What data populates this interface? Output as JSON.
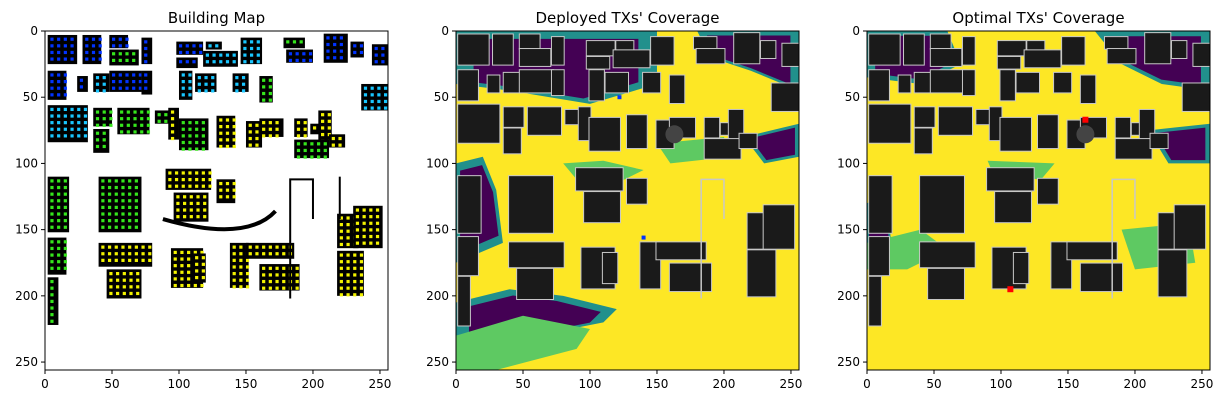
{
  "colors": {
    "building_black": "#000000",
    "building_fill": "#1a1a1a",
    "building_outline": "#c8c8c8",
    "viridis_dark": "#440154",
    "viridis_teal": "#21908c",
    "viridis_green": "#5ec962",
    "viridis_yellow": "#fde725",
    "tx_blue": "#0033ff",
    "tx_cyan": "#19c6ff",
    "tx_green": "#35e51c",
    "tx_yellow": "#f2f200",
    "optimal_tx_red": "#ff0000"
  },
  "chart_data": [
    {
      "type": "heatmap",
      "title": "Building Map",
      "xlabel": "",
      "ylabel": "",
      "xlim": [
        0,
        256
      ],
      "ylim": [
        256,
        0
      ],
      "xticks": [
        0,
        50,
        100,
        150,
        200,
        250
      ],
      "yticks": [
        0,
        50,
        100,
        150,
        200,
        250
      ],
      "legend": "none",
      "grid": false
    },
    {
      "type": "heatmap",
      "title": "Deployed TXs' Coverage",
      "xlabel": "",
      "ylabel": "",
      "xlim": [
        0,
        256
      ],
      "ylim": [
        256,
        0
      ],
      "xticks": [
        0,
        50,
        100,
        150,
        200,
        250
      ],
      "yticks": [
        0,
        50,
        100,
        150,
        200,
        250
      ],
      "legend": "none",
      "grid": false
    },
    {
      "type": "heatmap",
      "title": "Optimal TXs' Coverage",
      "xlabel": "",
      "ylabel": "",
      "xlim": [
        0,
        256
      ],
      "ylim": [
        256,
        0
      ],
      "xticks": [
        0,
        50,
        100,
        150,
        200,
        250
      ],
      "yticks": [
        0,
        50,
        100,
        150,
        200,
        250
      ],
      "legend": "none",
      "grid": false,
      "optimal_tx_points": [
        {
          "x": 163,
          "y": 67
        },
        {
          "x": 107,
          "y": 195
        }
      ]
    }
  ]
}
